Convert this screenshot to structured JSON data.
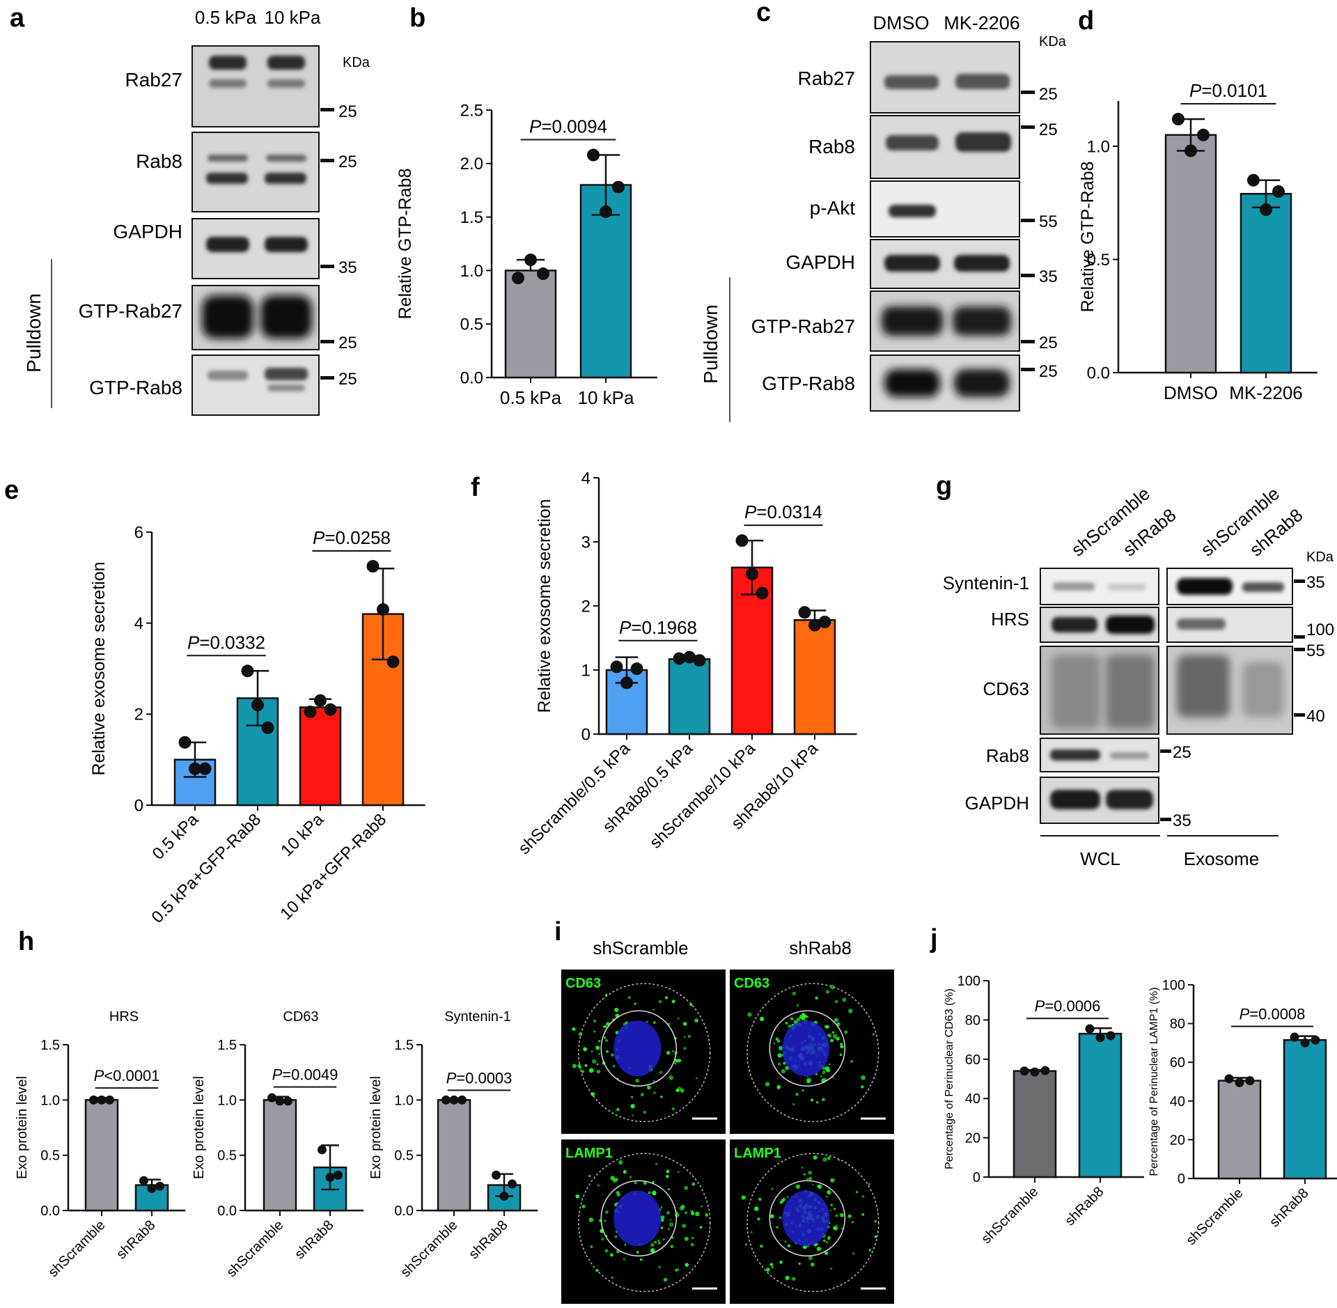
{
  "colors": {
    "gray": "#9b9ba3",
    "darkgray": "#6b6b70",
    "teal": "#1496ad",
    "blue": "#4fa0f3",
    "red": "#ff1414",
    "orange": "#ff6a10",
    "green_stain": "#22ff22",
    "nucleus": "#2020d0"
  },
  "panels": {
    "a": {
      "letter": "a",
      "lanes": [
        "0.5 kPa",
        "10 kPa"
      ],
      "kda_label": "KDa",
      "blots": [
        {
          "label": "Rab27",
          "marker": "25"
        },
        {
          "label": "Rab8",
          "marker": "25"
        },
        {
          "label": "GAPDH",
          "marker": "35"
        },
        {
          "label": "GTP-Rab27",
          "marker": "25"
        },
        {
          "label": "GTP-Rab8",
          "marker": "25"
        }
      ],
      "pulldown": "Pulldown"
    },
    "c": {
      "letter": "c",
      "lanes": [
        "DMSO",
        "MK-2206"
      ],
      "kda_label": "KDa",
      "blots": [
        {
          "label": "Rab27",
          "marker": "25"
        },
        {
          "label": "Rab8",
          "marker": "25"
        },
        {
          "label": "p-Akt",
          "marker": "55"
        },
        {
          "label": "GAPDH",
          "marker": "35"
        },
        {
          "label": "GTP-Rab27",
          "marker": "25"
        },
        {
          "label": "GTP-Rab8",
          "marker": "25"
        }
      ],
      "pulldown": "Pulldown"
    },
    "g": {
      "letter": "g",
      "lanes": [
        "shScramble",
        "shRab8",
        "shScramble",
        "shRab8"
      ],
      "kda_label": "KDa",
      "blots": [
        {
          "label": "Syntenin-1",
          "marker": "35"
        },
        {
          "label": "HRS",
          "marker": "100"
        },
        {
          "label": "CD63",
          "marker_top": "55",
          "marker": "40"
        },
        {
          "label": "Rab8",
          "marker": "25"
        },
        {
          "label": "GAPDH",
          "marker": "35"
        }
      ],
      "groups": [
        "WCL",
        "Exosome"
      ]
    },
    "i": {
      "letter": "i",
      "cols": [
        "shScramble",
        "shRab8"
      ],
      "stains": [
        "CD63",
        "CD63",
        "LAMP1",
        "LAMP1"
      ]
    }
  },
  "chart_data": [
    {
      "panel": "b",
      "type": "bar",
      "categories": [
        "0.5 kPa",
        "10 kPa"
      ],
      "values": [
        1.0,
        1.8
      ],
      "errors": [
        0.1,
        0.28
      ],
      "points": [
        [
          0.93,
          1.1,
          0.97
        ],
        [
          2.08,
          1.55,
          1.78
        ]
      ],
      "ylabel": "Relative GTP-Rab8",
      "ylim": [
        0,
        2.5
      ],
      "yticks": [
        "0.0",
        "0.5",
        "1.0",
        "1.5",
        "2.0",
        "2.5"
      ],
      "comparisons": [
        {
          "label": "P=0.0094",
          "pair": [
            0,
            1
          ]
        }
      ]
    },
    {
      "panel": "d",
      "type": "bar",
      "categories": [
        "DMSO",
        "MK-2206"
      ],
      "values": [
        1.05,
        0.79
      ],
      "errors": [
        0.07,
        0.06
      ],
      "points": [
        [
          1.12,
          0.98,
          1.05
        ],
        [
          0.85,
          0.72,
          0.8
        ]
      ],
      "ylabel": "Relative GTP-Rab8",
      "ylim": [
        0,
        1.2
      ],
      "yticks": [
        "0.0",
        "0.5",
        "1.0"
      ],
      "comparisons": [
        {
          "label": "P=0.0101",
          "pair": [
            0,
            1
          ]
        }
      ]
    },
    {
      "panel": "e",
      "type": "bar",
      "categories": [
        "0.5 kPa",
        "0.5 kPa+GFP-Rab8",
        "10 kPa",
        "10 kPa+GFP-Rab8"
      ],
      "values": [
        1.0,
        2.35,
        2.15,
        4.2
      ],
      "errors": [
        0.38,
        0.6,
        0.18,
        1.0
      ],
      "points": [
        [
          1.38,
          0.8,
          0.8
        ],
        [
          2.95,
          2.2,
          1.7
        ],
        [
          2.05,
          2.3,
          2.1
        ],
        [
          5.25,
          4.3,
          3.15
        ]
      ],
      "ylabel": "Relative exosome secretion",
      "ylim": [
        0,
        6
      ],
      "yticks": [
        "0",
        "2",
        "4",
        "6"
      ],
      "comparisons": [
        {
          "label": "P=0.0332",
          "pair": [
            0,
            1
          ]
        },
        {
          "label": "P=0.0258",
          "pair": [
            2,
            3
          ]
        }
      ]
    },
    {
      "panel": "f",
      "type": "bar",
      "categories": [
        "shScramble/0.5 kPa",
        "shRab8/0.5 kPa",
        "shScrambe/10 kPa",
        "shRab8/10 kPa"
      ],
      "values": [
        1.0,
        1.17,
        2.6,
        1.78
      ],
      "errors": [
        0.2,
        0.05,
        0.42,
        0.15
      ],
      "points": [
        [
          1.05,
          0.8,
          1.02
        ],
        [
          1.18,
          1.2,
          1.15
        ],
        [
          3.02,
          2.5,
          2.2
        ],
        [
          1.9,
          1.7,
          1.75
        ]
      ],
      "ylabel": "Relative exosome secretion",
      "ylim": [
        0,
        4
      ],
      "yticks": [
        "0",
        "1",
        "2",
        "3",
        "4"
      ],
      "comparisons": [
        {
          "label": "P=0.1968",
          "pair": [
            0,
            1
          ]
        },
        {
          "label": "P=0.0314",
          "pair": [
            2,
            3
          ]
        }
      ]
    },
    {
      "panel": "h1",
      "type": "bar",
      "title": "HRS",
      "categories": [
        "shScramble",
        "shRab8"
      ],
      "values": [
        1.0,
        0.23
      ],
      "errors": [
        0.02,
        0.05
      ],
      "points": [
        [
          1.0,
          1.0,
          1.0
        ],
        [
          0.27,
          0.2,
          0.22
        ]
      ],
      "ylabel": "Exo protein level",
      "ylim": [
        0,
        1.5
      ],
      "yticks": [
        "0.0",
        "0.5",
        "1.0",
        "1.5"
      ],
      "comparisons": [
        {
          "label": "P<0.0001",
          "pair": [
            0,
            1
          ]
        }
      ]
    },
    {
      "panel": "h2",
      "type": "bar",
      "title": "CD63",
      "categories": [
        "shScramble",
        "shRab8"
      ],
      "values": [
        1.0,
        0.39
      ],
      "errors": [
        0.03,
        0.2
      ],
      "points": [
        [
          1.02,
          0.99,
          0.99
        ],
        [
          0.55,
          0.3,
          0.32
        ]
      ],
      "ylabel": "Exo protein level",
      "ylim": [
        0,
        1.5
      ],
      "yticks": [
        "0.0",
        "0.5",
        "1.0",
        "1.5"
      ],
      "comparisons": [
        {
          "label": "P=0.0049",
          "pair": [
            0,
            1
          ]
        }
      ]
    },
    {
      "panel": "h3",
      "type": "bar",
      "title": "Syntenin-1",
      "categories": [
        "shScramble",
        "shRab8"
      ],
      "values": [
        1.0,
        0.23
      ],
      "errors": [
        0.0,
        0.1
      ],
      "points": [
        [
          1.0,
          1.0,
          1.0
        ],
        [
          0.32,
          0.13,
          0.24
        ]
      ],
      "ylabel": "Exo protein level",
      "ylim": [
        0,
        1.5
      ],
      "yticks": [
        "0.0",
        "0.5",
        "1.0",
        "1.5"
      ],
      "comparisons": [
        {
          "label": "P=0.0003",
          "pair": [
            0,
            1
          ]
        }
      ]
    },
    {
      "panel": "j1",
      "type": "bar",
      "categories": [
        "shScramble",
        "shRab8"
      ],
      "values": [
        54,
        73
      ],
      "errors": [
        0.5,
        2.8
      ],
      "points": [
        [
          54,
          53.5,
          54.2
        ],
        [
          75.5,
          71,
          72
        ]
      ],
      "ylabel": "Percentage of Perinuclear CD63 (%)",
      "ylim": [
        0,
        100
      ],
      "yticks": [
        "0",
        "20",
        "40",
        "60",
        "80",
        "100"
      ],
      "comparisons": [
        {
          "label": "P=0.0006",
          "pair": [
            0,
            1
          ]
        }
      ]
    },
    {
      "panel": "j2",
      "type": "bar",
      "categories": [
        "shScramble",
        "shRab8"
      ],
      "values": [
        50.5,
        71.5
      ],
      "errors": [
        1.5,
        2.0
      ],
      "points": [
        [
          51.5,
          49.5,
          50.5
        ],
        [
          73,
          70,
          71.5
        ]
      ],
      "ylabel": "Percentage of Perinuclear LAMP1 (%)",
      "ylim": [
        0,
        100
      ],
      "yticks": [
        "0",
        "20",
        "40",
        "60",
        "80",
        "100"
      ],
      "comparisons": [
        {
          "label": "P=0.0008",
          "pair": [
            0,
            1
          ]
        }
      ]
    }
  ]
}
